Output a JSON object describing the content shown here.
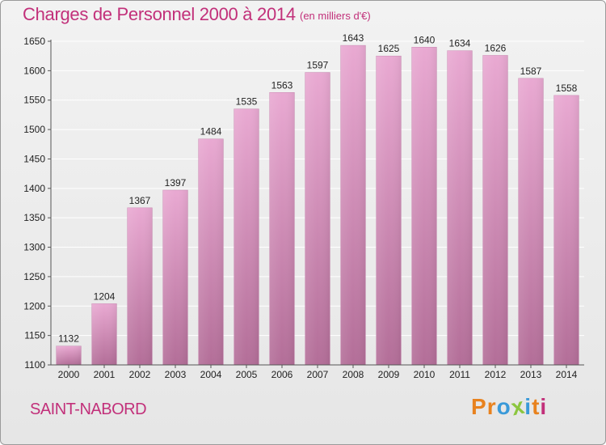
{
  "title": "Charges de Personnel 2000 à 2014",
  "unit_label": "(en milliers d'€)",
  "commune": "SAINT-NABORD",
  "logo": {
    "text": "Proxiti",
    "letters": [
      {
        "char": "P",
        "color": "#e8821e"
      },
      {
        "char": "r",
        "color": "#e8821e"
      },
      {
        "char": "o",
        "color": "#3a9ad9"
      },
      {
        "char": "x",
        "color": "#8cc63f"
      },
      {
        "char": "i",
        "color": "#3a9ad9"
      },
      {
        "char": "t",
        "color": "#e8821e"
      },
      {
        "char": "i",
        "color": "#c2307a"
      }
    ]
  },
  "colors": {
    "title": "#c2307a",
    "bar_top": "#e9a9d2",
    "bar_bottom": "#b36e98",
    "grid": "#ffffff",
    "axis_text": "#222222"
  },
  "chart_data": {
    "type": "bar",
    "categories": [
      "2000",
      "2001",
      "2002",
      "2003",
      "2004",
      "2005",
      "2006",
      "2007",
      "2008",
      "2009",
      "2010",
      "2011",
      "2012",
      "2013",
      "2014"
    ],
    "values": [
      1132,
      1204,
      1367,
      1397,
      1484,
      1535,
      1563,
      1597,
      1643,
      1625,
      1640,
      1634,
      1626,
      1587,
      1558
    ],
    "title": "Charges de Personnel 2000 à 2014",
    "ylim": [
      1100,
      1650
    ],
    "yticks": [
      1100,
      1150,
      1200,
      1250,
      1300,
      1350,
      1400,
      1450,
      1500,
      1550,
      1600,
      1650
    ],
    "grid": true,
    "data_labels": true
  }
}
